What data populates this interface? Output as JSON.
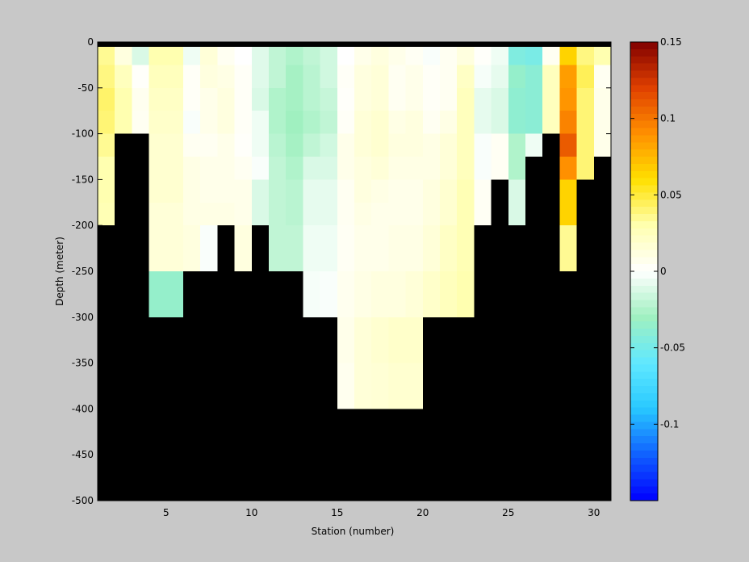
{
  "chart_data": {
    "type": "heatmap",
    "title": "",
    "xlabel": "Station (number)",
    "ylabel": "Depth (meter)",
    "xlim": [
      1,
      31
    ],
    "ylim": [
      -500,
      0
    ],
    "xticks": [
      5,
      10,
      15,
      20,
      25,
      30
    ],
    "yticks": [
      0,
      -50,
      -100,
      -150,
      -200,
      -250,
      -300,
      -350,
      -400,
      -450,
      -500
    ],
    "colorbar": {
      "range": [
        -0.15,
        0.15
      ],
      "ticks": [
        0.15,
        0.1,
        0.05,
        0,
        -0.05,
        -0.1
      ],
      "tick_labels": [
        "0.15",
        "0.1",
        "0.05",
        "0",
        "-0.05",
        "-0.1"
      ],
      "colormap": [
        "#0000ff",
        "#1060ff",
        "#28c8ff",
        "#60e8ff",
        "#a0f0c0",
        "#ffffff",
        "#ffffb0",
        "#ffe000",
        "#ff9000",
        "#e04000",
        "#800000"
      ]
    },
    "masked_color": "#000000",
    "grid": false,
    "depth_rows": [
      0,
      -25,
      -50,
      -75,
      -100,
      -125,
      -150,
      -175,
      -200,
      -225,
      -250,
      -275,
      -300,
      -325,
      -350,
      -375,
      -400,
      -425,
      -450,
      -475
    ],
    "stations": [
      {
        "station": 1,
        "bottom": -200,
        "values": [
          0.035,
          0.038,
          0.042,
          0.04,
          0.035,
          0.03,
          0.03,
          0.028
        ]
      },
      {
        "station": 2,
        "bottom": -100,
        "values": [
          0.012,
          0.025,
          0.03,
          0.03
        ]
      },
      {
        "station": 3,
        "bottom": -100,
        "values": [
          -0.012,
          0.002,
          0.006,
          0.005
        ]
      },
      {
        "station": 4,
        "bottom": -300,
        "values": [
          0.03,
          0.025,
          0.022,
          0.02,
          0.018,
          0.018,
          0.018,
          0.015,
          0.015,
          0.015,
          -0.035,
          -0.035
        ]
      },
      {
        "station": 5,
        "bottom": -300,
        "values": [
          0.03,
          0.025,
          0.022,
          0.02,
          0.018,
          0.018,
          0.018,
          0.015,
          0.015,
          0.015,
          -0.035,
          -0.035
        ]
      },
      {
        "station": 6,
        "bottom": -250,
        "values": [
          -0.005,
          0.003,
          0.003,
          -0.002,
          0.005,
          0.01,
          0.01,
          0.01,
          0.012,
          0.012
        ]
      },
      {
        "station": 7,
        "bottom": -250,
        "values": [
          0.015,
          0.012,
          0.008,
          0.008,
          0.005,
          0.008,
          0.008,
          0.01,
          -0.002,
          -0.002
        ]
      },
      {
        "station": 8,
        "bottom": -200,
        "values": [
          0.005,
          0.01,
          0.012,
          0.012,
          0.008,
          0.008,
          0.008,
          0.01
        ]
      },
      {
        "station": 9,
        "bottom": -250,
        "values": [
          0.0,
          0.003,
          0.003,
          0.003,
          0.002,
          0.005,
          0.008,
          0.008,
          0.012,
          0.012
        ]
      },
      {
        "station": 10,
        "bottom": -200,
        "values": [
          -0.01,
          -0.01,
          -0.012,
          -0.005,
          -0.005,
          -0.002,
          -0.012,
          -0.012
        ]
      },
      {
        "station": 11,
        "bottom": -250,
        "values": [
          -0.02,
          -0.02,
          -0.025,
          -0.025,
          -0.022,
          -0.02,
          -0.02,
          -0.02,
          -0.02,
          -0.02
        ]
      },
      {
        "station": 12,
        "bottom": -250,
        "values": [
          -0.025,
          -0.028,
          -0.028,
          -0.03,
          -0.028,
          -0.025,
          -0.022,
          -0.022,
          -0.02,
          -0.02
        ]
      },
      {
        "station": 13,
        "bottom": -300,
        "values": [
          -0.02,
          -0.022,
          -0.022,
          -0.025,
          -0.02,
          -0.012,
          -0.008,
          -0.008,
          -0.005,
          -0.005,
          -0.003,
          -0.003
        ]
      },
      {
        "station": 14,
        "bottom": -300,
        "values": [
          -0.015,
          -0.015,
          -0.018,
          -0.02,
          -0.015,
          -0.012,
          -0.008,
          -0.008,
          -0.005,
          -0.005,
          -0.002,
          -0.002
        ]
      },
      {
        "station": 15,
        "bottom": -400,
        "values": [
          0.0,
          0.003,
          0.002,
          0.003,
          0.008,
          0.008,
          0.005,
          0.005,
          0.004,
          0.004,
          0.006,
          0.006,
          0.008,
          0.008,
          0.006,
          0.006
        ]
      },
      {
        "station": 16,
        "bottom": -400,
        "values": [
          0.008,
          0.012,
          0.012,
          0.015,
          0.015,
          0.012,
          0.012,
          0.01,
          0.008,
          0.008,
          0.01,
          0.01,
          0.015,
          0.015,
          0.015,
          0.015
        ]
      },
      {
        "station": 17,
        "bottom": -400,
        "values": [
          0.012,
          0.015,
          0.015,
          0.018,
          0.018,
          0.015,
          0.01,
          0.008,
          0.008,
          0.008,
          0.012,
          0.012,
          0.018,
          0.018,
          0.016,
          0.016
        ]
      },
      {
        "station": 18,
        "bottom": -400,
        "values": [
          0.008,
          0.005,
          0.005,
          0.01,
          0.012,
          0.01,
          0.008,
          0.008,
          0.01,
          0.01,
          0.012,
          0.012,
          0.02,
          0.02,
          0.018,
          0.018
        ]
      },
      {
        "station": 19,
        "bottom": -400,
        "values": [
          0.004,
          0.008,
          0.008,
          0.012,
          0.012,
          0.01,
          0.008,
          0.008,
          0.01,
          0.01,
          0.015,
          0.015,
          0.02,
          0.02,
          0.018,
          0.018
        ]
      },
      {
        "station": 20,
        "bottom": -300,
        "values": [
          -0.002,
          0.003,
          0.003,
          0.005,
          0.01,
          0.01,
          0.012,
          0.012,
          0.015,
          0.015,
          0.02,
          0.02
        ]
      },
      {
        "station": 21,
        "bottom": -300,
        "values": [
          0.005,
          0.005,
          0.005,
          0.01,
          0.015,
          0.015,
          0.018,
          0.018,
          0.022,
          0.022,
          0.025,
          0.025
        ]
      },
      {
        "station": 22,
        "bottom": -300,
        "values": [
          0.012,
          0.022,
          0.025,
          0.025,
          0.025,
          0.025,
          0.028,
          0.028,
          0.028,
          0.028,
          0.03,
          0.03
        ]
      },
      {
        "station": 23,
        "bottom": -200,
        "values": [
          0.002,
          -0.003,
          -0.008,
          -0.008,
          -0.002,
          -0.002,
          0.004,
          0.004
        ]
      },
      {
        "station": 24,
        "bottom": -150,
        "values": [
          -0.005,
          -0.008,
          -0.012,
          -0.012,
          0.004,
          0.004
        ]
      },
      {
        "station": 25,
        "bottom": -200,
        "values": [
          -0.045,
          -0.035,
          -0.038,
          -0.038,
          -0.025,
          -0.025,
          -0.012,
          -0.012
        ]
      },
      {
        "station": 26,
        "bottom": -125,
        "values": [
          -0.048,
          -0.04,
          -0.04,
          -0.04,
          -0.005
        ]
      },
      {
        "station": 27,
        "bottom": -100,
        "values": [
          0.005,
          0.025,
          0.025,
          0.025
        ]
      },
      {
        "station": 28,
        "bottom": -250,
        "values": [
          0.065,
          0.085,
          0.088,
          0.095,
          0.11,
          0.09,
          0.065,
          0.065,
          0.035,
          0.035
        ]
      },
      {
        "station": 29,
        "bottom": -150,
        "values": [
          0.038,
          0.045,
          0.04,
          0.04,
          0.04,
          0.04
        ]
      },
      {
        "station": 30,
        "bottom": -125,
        "values": [
          0.03,
          0.005,
          0.008,
          0.008,
          0.008
        ]
      }
    ]
  }
}
